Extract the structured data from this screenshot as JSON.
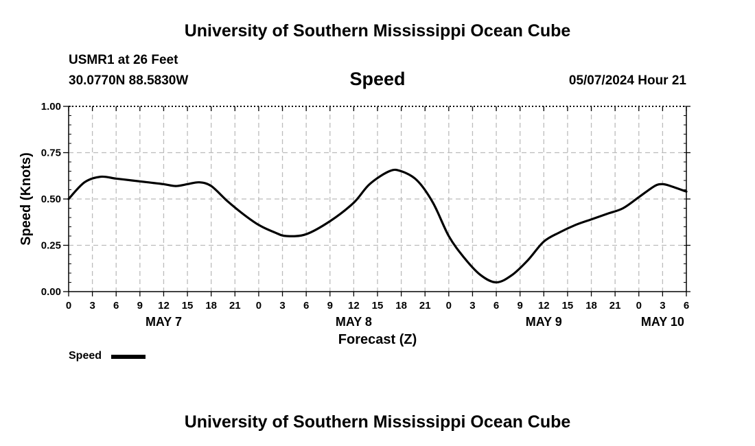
{
  "header": {
    "title": "University of Southern Mississippi Ocean Cube",
    "station": "USMR1 at 26 Feet",
    "coords": "30.0770N  88.5830W",
    "variable": "Speed",
    "timestamp": "05/07/2024 Hour 21"
  },
  "footer": {
    "title": "University of Southern Mississippi Ocean Cube"
  },
  "legend": {
    "label": "Speed"
  },
  "chart_data": {
    "type": "line",
    "title": "Speed",
    "xlabel": "Forecast (Z)",
    "ylabel": "Speed (Knots)",
    "x_unit": "hours since 00Z MAY 7",
    "xlim": [
      0,
      78
    ],
    "ylim": [
      0,
      1
    ],
    "grid": true,
    "legend_position": "bottom-left",
    "y_ticks": [
      "0.00",
      "0.25",
      "0.50",
      "0.75",
      "1.00"
    ],
    "y_tick_values": [
      0,
      0.25,
      0.5,
      0.75,
      1.0
    ],
    "x_ticks": [
      "0",
      "3",
      "6",
      "9",
      "12",
      "15",
      "18",
      "21",
      "0",
      "3",
      "6",
      "9",
      "12",
      "15",
      "18",
      "21",
      "0",
      "3",
      "6",
      "9",
      "12",
      "15",
      "18",
      "21",
      "0",
      "3",
      "6"
    ],
    "day_labels": [
      {
        "label": "MAY 7",
        "hour": 12
      },
      {
        "label": "MAY 8",
        "hour": 36
      },
      {
        "label": "MAY 9",
        "hour": 60
      },
      {
        "label": "MAY 10",
        "hour": 75
      }
    ],
    "series": [
      {
        "name": "Speed",
        "color": "#000000",
        "x": [
          0,
          2,
          4,
          6,
          8,
          10,
          12,
          13.5,
          15,
          16.5,
          18,
          20,
          22,
          24,
          26,
          27.5,
          30,
          33,
          36,
          38,
          40.5,
          42,
          44,
          46,
          48,
          50,
          52,
          54,
          56,
          58,
          60,
          62,
          64,
          66,
          68,
          70,
          72,
          74,
          75,
          76,
          78
        ],
        "y": [
          0.5,
          0.59,
          0.62,
          0.61,
          0.6,
          0.59,
          0.58,
          0.57,
          0.58,
          0.59,
          0.57,
          0.49,
          0.42,
          0.36,
          0.32,
          0.3,
          0.31,
          0.38,
          0.48,
          0.58,
          0.65,
          0.65,
          0.6,
          0.48,
          0.3,
          0.18,
          0.09,
          0.05,
          0.09,
          0.17,
          0.27,
          0.32,
          0.36,
          0.39,
          0.42,
          0.45,
          0.51,
          0.57,
          0.58,
          0.57,
          0.54
        ]
      }
    ]
  }
}
